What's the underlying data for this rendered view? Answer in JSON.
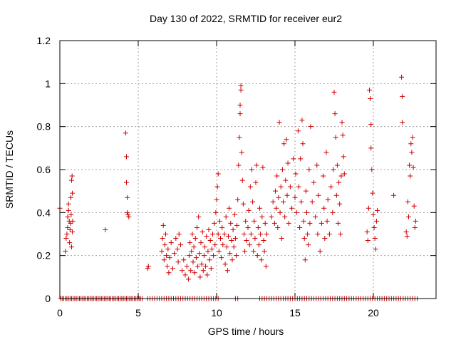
{
  "chart_data": {
    "type": "scatter",
    "title": "Day 130 of 2022, SRMTID for receiver eur2",
    "xlabel": "GPS time / hours",
    "ylabel": "SRMTID / TECUs",
    "xlim": [
      0,
      24
    ],
    "ylim": [
      0,
      1.2
    ],
    "x_ticks": [
      0,
      5,
      10,
      15,
      20
    ],
    "x_tick_labels": [
      "0",
      "5",
      "10",
      "15",
      "20"
    ],
    "y_ticks": [
      0,
      0.2,
      0.4,
      0.6,
      0.8,
      1.0,
      1.2
    ],
    "y_tick_labels": [
      "0",
      "0.2",
      "0.4",
      "0.6",
      "0.8",
      "1",
      "1.2"
    ],
    "grid": true,
    "marker": "+",
    "marker_color": "#cc0000",
    "series": [
      {
        "name": "SRMTID",
        "points": [
          [
            0.0,
            0.42
          ],
          [
            0.35,
            0.22
          ],
          [
            0.4,
            0.28
          ],
          [
            0.45,
            0.3
          ],
          [
            0.5,
            0.33
          ],
          [
            0.5,
            0.38
          ],
          [
            0.55,
            0.41
          ],
          [
            0.55,
            0.44
          ],
          [
            0.6,
            0.36
          ],
          [
            0.62,
            0.26
          ],
          [
            0.65,
            0.32
          ],
          [
            0.68,
            0.35
          ],
          [
            0.7,
            0.47
          ],
          [
            0.72,
            0.39
          ],
          [
            0.75,
            0.55
          ],
          [
            0.75,
            0.24
          ],
          [
            0.78,
            0.57
          ],
          [
            0.8,
            0.49
          ],
          [
            0.8,
            0.31
          ],
          [
            0.82,
            0.36
          ],
          [
            2.9,
            0.32
          ],
          [
            4.2,
            0.77
          ],
          [
            4.25,
            0.66
          ],
          [
            4.25,
            0.54
          ],
          [
            4.3,
            0.47
          ],
          [
            4.3,
            0.4
          ],
          [
            4.35,
            0.39
          ],
          [
            4.4,
            0.38
          ],
          [
            5.6,
            0.14
          ],
          [
            5.65,
            0.15
          ],
          [
            6.5,
            0.22
          ],
          [
            6.55,
            0.28
          ],
          [
            6.6,
            0.34
          ],
          [
            6.65,
            0.18
          ],
          [
            6.7,
            0.25
          ],
          [
            6.75,
            0.3
          ],
          [
            6.8,
            0.2
          ],
          [
            6.85,
            0.15
          ],
          [
            6.9,
            0.23
          ],
          [
            6.95,
            0.12
          ],
          [
            7.0,
            0.19
          ],
          [
            7.1,
            0.26
          ],
          [
            7.2,
            0.14
          ],
          [
            7.3,
            0.21
          ],
          [
            7.4,
            0.28
          ],
          [
            7.5,
            0.23
          ],
          [
            7.55,
            0.17
          ],
          [
            7.6,
            0.3
          ],
          [
            7.7,
            0.25
          ],
          [
            7.8,
            0.13
          ],
          [
            7.9,
            0.18
          ],
          [
            8.0,
            0.11
          ],
          [
            8.1,
            0.15
          ],
          [
            8.2,
            0.09
          ],
          [
            8.25,
            0.2
          ],
          [
            8.3,
            0.26
          ],
          [
            8.35,
            0.13
          ],
          [
            8.4,
            0.22
          ],
          [
            8.45,
            0.3
          ],
          [
            8.5,
            0.17
          ],
          [
            8.55,
            0.24
          ],
          [
            8.6,
            0.12
          ],
          [
            8.65,
            0.28
          ],
          [
            8.7,
            0.19
          ],
          [
            8.75,
            0.33
          ],
          [
            8.8,
            0.15
          ],
          [
            8.85,
            0.38
          ],
          [
            8.9,
            0.21
          ],
          [
            8.95,
            0.1
          ],
          [
            9.0,
            0.26
          ],
          [
            9.05,
            0.16
          ],
          [
            9.1,
            0.31
          ],
          [
            9.15,
            0.13
          ],
          [
            9.2,
            0.2
          ],
          [
            9.25,
            0.24
          ],
          [
            9.3,
            0.15
          ],
          [
            9.35,
            0.29
          ],
          [
            9.4,
            0.11
          ],
          [
            9.45,
            0.22
          ],
          [
            9.5,
            0.32
          ],
          [
            9.55,
            0.18
          ],
          [
            9.6,
            0.27
          ],
          [
            9.65,
            0.14
          ],
          [
            9.7,
            0.23
          ],
          [
            9.75,
            0.3
          ],
          [
            9.8,
            0.2
          ],
          [
            9.85,
            0.35
          ],
          [
            9.9,
            0.25
          ],
          [
            9.95,
            0.4
          ],
          [
            10.0,
            0.46
          ],
          [
            10.05,
            0.52
          ],
          [
            10.1,
            0.58
          ],
          [
            10.1,
            0.3
          ],
          [
            10.15,
            0.22
          ],
          [
            10.2,
            0.36
          ],
          [
            10.25,
            0.28
          ],
          [
            10.3,
            0.19
          ],
          [
            10.35,
            0.33
          ],
          [
            10.4,
            0.25
          ],
          [
            10.5,
            0.3
          ],
          [
            10.55,
            0.16
          ],
          [
            10.6,
            0.38
          ],
          [
            10.65,
            0.24
          ],
          [
            10.7,
            0.13
          ],
          [
            10.75,
            0.29
          ],
          [
            10.8,
            0.42
          ],
          [
            10.85,
            0.21
          ],
          [
            10.9,
            0.35
          ],
          [
            10.95,
            0.27
          ],
          [
            11.0,
            0.18
          ],
          [
            11.05,
            0.32
          ],
          [
            11.1,
            0.24
          ],
          [
            11.15,
            0.39
          ],
          [
            11.2,
            0.28
          ],
          [
            11.25,
            0.2
          ],
          [
            11.3,
            0.34
          ],
          [
            11.35,
            0.46
          ],
          [
            11.4,
            0.62
          ],
          [
            11.45,
            0.75
          ],
          [
            11.5,
            0.86
          ],
          [
            11.5,
            0.9
          ],
          [
            11.55,
            0.97
          ],
          [
            11.55,
            0.99
          ],
          [
            11.6,
            0.68
          ],
          [
            11.65,
            0.55
          ],
          [
            11.7,
            0.44
          ],
          [
            11.75,
            0.3
          ],
          [
            11.8,
            0.22
          ],
          [
            11.85,
            0.36
          ],
          [
            11.9,
            0.27
          ],
          [
            12.0,
            0.33
          ],
          [
            12.05,
            0.41
          ],
          [
            12.1,
            0.25
          ],
          [
            12.15,
            0.52
          ],
          [
            12.2,
            0.3
          ],
          [
            12.25,
            0.6
          ],
          [
            12.3,
            0.45
          ],
          [
            12.35,
            0.22
          ],
          [
            12.4,
            0.36
          ],
          [
            12.45,
            0.28
          ],
          [
            12.5,
            0.54
          ],
          [
            12.55,
            0.62
          ],
          [
            12.6,
            0.2
          ],
          [
            12.65,
            0.33
          ],
          [
            12.7,
            0.25
          ],
          [
            12.75,
            0.42
          ],
          [
            12.8,
            0.3
          ],
          [
            12.85,
            0.18
          ],
          [
            12.9,
            0.38
          ],
          [
            12.95,
            0.61
          ],
          [
            13.0,
            0.27
          ],
          [
            13.05,
            0.22
          ],
          [
            13.1,
            0.35
          ],
          [
            13.15,
            0.15
          ],
          [
            13.2,
            0.3
          ],
          [
            13.5,
            0.38
          ],
          [
            13.6,
            0.45
          ],
          [
            13.7,
            0.35
          ],
          [
            13.75,
            0.5
          ],
          [
            13.8,
            0.42
          ],
          [
            13.85,
            0.57
          ],
          [
            13.9,
            0.33
          ],
          [
            13.95,
            0.47
          ],
          [
            14.0,
            0.82
          ],
          [
            14.05,
            0.4
          ],
          [
            14.1,
            0.52
          ],
          [
            14.15,
            0.28
          ],
          [
            14.2,
            0.6
          ],
          [
            14.25,
            0.45
          ],
          [
            14.3,
            0.72
          ],
          [
            14.35,
            0.38
          ],
          [
            14.4,
            0.55
          ],
          [
            14.45,
            0.74
          ],
          [
            14.5,
            0.48
          ],
          [
            14.55,
            0.63
          ],
          [
            14.6,
            0.35
          ],
          [
            14.7,
            0.52
          ],
          [
            14.8,
            0.42
          ],
          [
            14.9,
            0.65
          ],
          [
            15.0,
            0.47
          ],
          [
            15.05,
            0.58
          ],
          [
            15.1,
            0.4
          ],
          [
            15.2,
            0.78
          ],
          [
            15.25,
            0.52
          ],
          [
            15.3,
            0.33
          ],
          [
            15.35,
            0.65
          ],
          [
            15.4,
            0.45
          ],
          [
            15.45,
            0.83
          ],
          [
            15.5,
            0.72
          ],
          [
            15.55,
            0.36
          ],
          [
            15.6,
            0.28
          ],
          [
            15.65,
            0.18
          ],
          [
            15.7,
            0.5
          ],
          [
            15.75,
            0.4
          ],
          [
            15.8,
            0.3
          ],
          [
            15.85,
            0.25
          ],
          [
            15.9,
            0.6
          ],
          [
            15.95,
            0.35
          ],
          [
            16.0,
            0.8
          ],
          [
            16.1,
            0.45
          ],
          [
            16.2,
            0.54
          ],
          [
            16.3,
            0.38
          ],
          [
            16.4,
            0.62
          ],
          [
            16.45,
            0.3
          ],
          [
            16.5,
            0.48
          ],
          [
            16.6,
            0.22
          ],
          [
            16.7,
            0.35
          ],
          [
            16.8,
            0.57
          ],
          [
            16.85,
            0.42
          ],
          [
            16.9,
            0.28
          ],
          [
            17.0,
            0.68
          ],
          [
            17.05,
            0.36
          ],
          [
            17.1,
            0.46
          ],
          [
            17.2,
            0.3
          ],
          [
            17.3,
            0.52
          ],
          [
            17.4,
            0.4
          ],
          [
            17.45,
            0.6
          ],
          [
            17.5,
            0.96
          ],
          [
            17.55,
            0.86
          ],
          [
            17.6,
            0.75
          ],
          [
            17.65,
            0.48
          ],
          [
            17.7,
            0.62
          ],
          [
            17.75,
            0.35
          ],
          [
            17.8,
            0.54
          ],
          [
            17.85,
            0.44
          ],
          [
            17.9,
            0.3
          ],
          [
            17.95,
            0.57
          ],
          [
            18.0,
            0.82
          ],
          [
            18.05,
            0.76
          ],
          [
            18.1,
            0.66
          ],
          [
            18.15,
            0.58
          ],
          [
            19.6,
            0.31
          ],
          [
            19.65,
            0.27
          ],
          [
            19.7,
            0.42
          ],
          [
            19.75,
            0.97
          ],
          [
            19.8,
            0.93
          ],
          [
            19.85,
            0.81
          ],
          [
            19.85,
            0.7
          ],
          [
            19.9,
            0.6
          ],
          [
            19.95,
            0.49
          ],
          [
            20.0,
            0.39
          ],
          [
            20.05,
            0.33
          ],
          [
            20.1,
            0.28
          ],
          [
            20.15,
            0.23
          ],
          [
            20.2,
            0.36
          ],
          [
            20.25,
            0.41
          ],
          [
            21.3,
            0.48
          ],
          [
            21.8,
            1.03
          ],
          [
            21.85,
            0.94
          ],
          [
            21.85,
            0.82
          ],
          [
            22.1,
            0.31
          ],
          [
            22.15,
            0.29
          ],
          [
            22.2,
            0.45
          ],
          [
            22.25,
            0.38
          ],
          [
            22.3,
            0.62
          ],
          [
            22.35,
            0.57
          ],
          [
            22.4,
            0.72
          ],
          [
            22.45,
            0.68
          ],
          [
            22.5,
            0.75
          ],
          [
            22.55,
            0.61
          ],
          [
            22.6,
            0.43
          ],
          [
            22.65,
            0.33
          ],
          [
            22.7,
            0.36
          ]
        ],
        "zero_baseline_points": [
          0.05,
          0.15,
          0.25,
          0.35,
          0.45,
          0.55,
          0.65,
          0.75,
          0.85,
          0.95,
          1.05,
          1.15,
          1.25,
          1.35,
          1.45,
          1.55,
          1.65,
          1.75,
          1.85,
          1.95,
          2.05,
          2.15,
          2.25,
          2.35,
          2.45,
          2.55,
          2.65,
          2.75,
          2.85,
          2.95,
          3.05,
          3.15,
          3.25,
          3.35,
          3.45,
          3.55,
          3.65,
          3.75,
          3.85,
          3.95,
          4.05,
          4.15,
          4.25,
          4.35,
          4.45,
          4.55,
          4.65,
          4.75,
          4.85,
          4.95,
          5.05,
          5.15,
          5.25,
          5.6,
          5.75,
          5.9,
          6.05,
          6.2,
          6.35,
          6.5,
          6.65,
          6.8,
          6.95,
          7.1,
          7.25,
          7.4,
          7.55,
          7.7,
          7.85,
          8.0,
          8.15,
          8.3,
          8.45,
          8.6,
          8.75,
          8.9,
          9.05,
          9.2,
          9.35,
          9.5,
          9.65,
          9.8,
          9.95,
          10.1,
          11.2,
          11.35,
          12.75,
          12.9,
          13.05,
          13.2,
          13.35,
          13.5,
          13.65,
          13.8,
          13.95,
          14.1,
          14.25,
          14.4,
          14.55,
          14.7,
          14.85,
          15.0,
          15.15,
          15.3,
          15.45,
          15.6,
          15.75,
          15.9,
          16.05,
          16.2,
          16.35,
          16.5,
          16.65,
          16.8,
          16.95,
          17.1,
          17.25,
          17.4,
          17.55,
          17.7,
          17.85,
          18.0,
          18.15,
          18.3,
          18.45,
          18.6,
          18.75,
          18.9,
          19.05,
          19.2,
          19.35,
          19.5,
          19.65,
          19.8,
          19.95,
          20.1,
          20.25,
          20.4,
          20.55,
          20.7,
          20.85,
          21.0,
          21.15,
          21.3,
          21.45,
          21.6,
          21.75,
          21.9,
          22.05,
          22.2,
          22.35,
          22.5,
          22.65,
          22.8
        ]
      }
    ]
  }
}
